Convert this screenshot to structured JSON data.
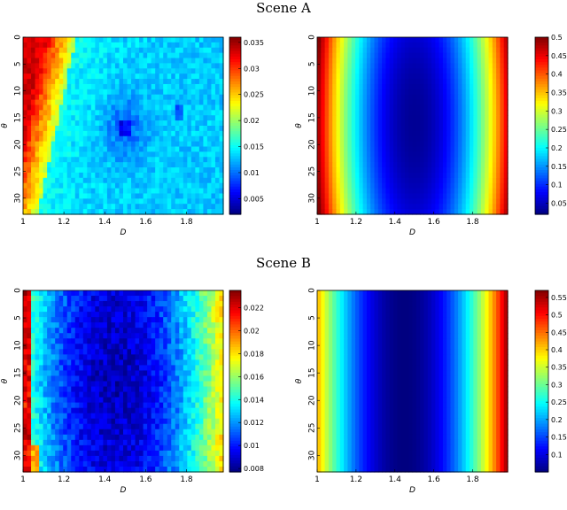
{
  "figure": {
    "scene_titles": [
      "Scene A",
      "Scene B"
    ]
  },
  "chart_data": [
    {
      "type": "heatmap",
      "scene": "Scene A",
      "xlabel": "D",
      "ylabel": "θ",
      "x_range": [
        1,
        1.98
      ],
      "y_range": [
        0,
        33
      ],
      "x_ticks": [
        "1",
        "1.2",
        "1.4",
        "1.6",
        "1.8"
      ],
      "y_ticks": [
        "0",
        "5",
        "10",
        "15",
        "20",
        "25",
        "30"
      ],
      "colorbar": {
        "min": 0.002,
        "max": 0.036,
        "ticks": [
          "0.005",
          "0.01",
          "0.015",
          "0.02",
          "0.025",
          "0.03",
          "0.035"
        ]
      },
      "colormap": "jet",
      "field": {
        "kind": "noisy_left_wedge",
        "low": 0.013,
        "high": 0.033,
        "minimum_at": [
          1.5,
          17
        ]
      }
    },
    {
      "type": "heatmap",
      "scene": "Scene A",
      "xlabel": "D",
      "ylabel": "θ",
      "x_range": [
        1,
        1.98
      ],
      "y_range": [
        0,
        33
      ],
      "x_ticks": [
        "1",
        "1.2",
        "1.4",
        "1.6",
        "1.8"
      ],
      "y_ticks": [
        "0",
        "5",
        "10",
        "15",
        "20",
        "25",
        "30"
      ],
      "colorbar": {
        "min": 0.02,
        "max": 0.5,
        "ticks": [
          "0.05",
          "0.1",
          "0.15",
          "0.2",
          "0.25",
          "0.3",
          "0.35",
          "0.4",
          "0.45",
          "0.5"
        ]
      },
      "colormap": "jet",
      "field": {
        "kind": "smooth_bowl",
        "center_x": 1.5,
        "center_y": 16,
        "min_value": 0.03,
        "max_value": 0.5
      }
    },
    {
      "type": "heatmap",
      "scene": "Scene B",
      "xlabel": "D",
      "ylabel": "θ",
      "x_range": [
        1,
        1.98
      ],
      "y_range": [
        0,
        33
      ],
      "x_ticks": [
        "1",
        "1.2",
        "1.4",
        "1.6",
        "1.8"
      ],
      "y_ticks": [
        "0",
        "5",
        "10",
        "15",
        "20",
        "25",
        "30"
      ],
      "colorbar": {
        "min": 0.0077,
        "max": 0.0235,
        "ticks": [
          "0.008",
          "0.01",
          "0.012",
          "0.014",
          "0.016",
          "0.018",
          "0.02",
          "0.022"
        ]
      },
      "colormap": "jet",
      "field": {
        "kind": "noisy_valley",
        "center_x": 1.45,
        "low": 0.0085,
        "high": 0.016
      }
    },
    {
      "type": "heatmap",
      "scene": "Scene B",
      "xlabel": "D",
      "ylabel": "θ",
      "x_range": [
        1,
        1.98
      ],
      "y_range": [
        0,
        33
      ],
      "x_ticks": [
        "1",
        "1.2",
        "1.4",
        "1.6",
        "1.8"
      ],
      "y_ticks": [
        "0",
        "5",
        "10",
        "15",
        "20",
        "25",
        "30"
      ],
      "colorbar": {
        "min": 0.05,
        "max": 0.57,
        "ticks": [
          "0.1",
          "0.15",
          "0.2",
          "0.25",
          "0.3",
          "0.35",
          "0.4",
          "0.45",
          "0.5",
          "0.55"
        ]
      },
      "colormap": "jet",
      "field": {
        "kind": "smooth_valley",
        "center_x": 1.45,
        "min_value": 0.05,
        "max_value": 0.56
      }
    }
  ]
}
